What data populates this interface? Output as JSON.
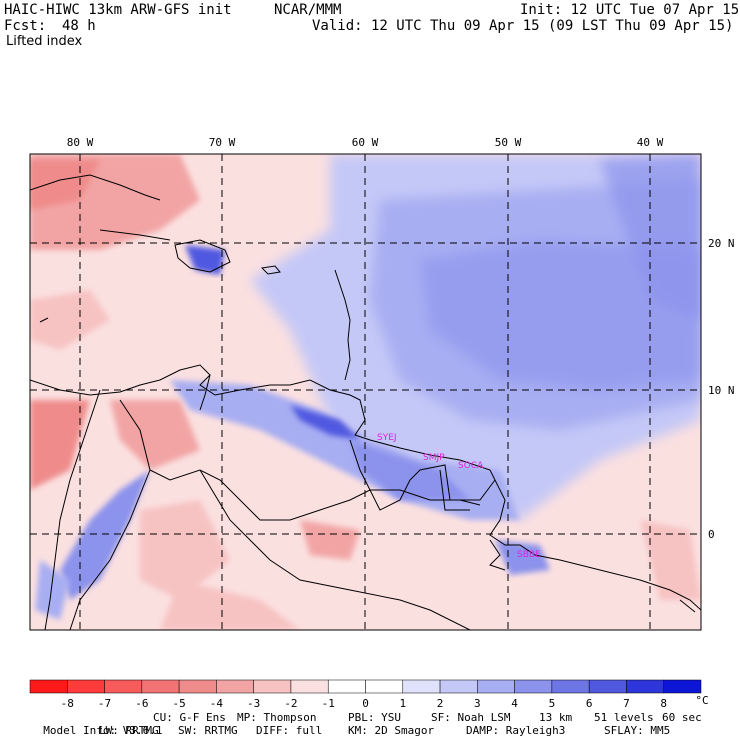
{
  "header": {
    "model": "HAIC-HIWC 13km ARW-GFS init",
    "org": "NCAR/MMM",
    "init": "Init: 12 UTC Tue 07 Apr 15",
    "fcst_label": "Fcst:",
    "fcst_value": "48 h",
    "valid": "Valid: 12 UTC Thu 09 Apr 15 (09 LST Thu 09 Apr 15)",
    "field": "Lifted index"
  },
  "map": {
    "lon_labels": [
      "80 W",
      "70 W",
      "60 W",
      "50 W",
      "40 W"
    ],
    "lat_labels": [
      "20 N",
      "10 N",
      "0"
    ],
    "stations": [
      "SYEJ",
      "SMJP",
      "SOCA",
      "SBBE"
    ],
    "station_color": "#e020e0"
  },
  "colorbar": {
    "unit": "°C",
    "ticks": [
      "-8",
      "-7",
      "-6",
      "-5",
      "-4",
      "-3",
      "-2",
      "-1",
      "0",
      "1",
      "2",
      "3",
      "4",
      "5",
      "6",
      "7",
      "8"
    ],
    "colors": [
      "#ff1a1a",
      "#ff3b3b",
      "#f75b5b",
      "#f27373",
      "#ef8b8b",
      "#f2a4a4",
      "#f7c2c2",
      "#fbe0e0",
      "#ffffff",
      "#e0e2fb",
      "#c4c8f7",
      "#a8aef2",
      "#8c93ec",
      "#6e76e6",
      "#5058e0",
      "#2e36db",
      "#0d15d6"
    ]
  },
  "footer": {
    "line1": [
      "Model Info: V3.6.1",
      "CU: G-F Ens",
      "MP: Thompson",
      "PBL: YSU",
      "SF: Noah LSM",
      "13 km",
      "51 levels",
      "60 sec"
    ],
    "line2": [
      "LW: RRTMG",
      "SW: RRTMG",
      "DIFF: full",
      "KM: 2D Smagor",
      "DAMP: Rayleigh3",
      "SFLAY: MM5"
    ]
  }
}
